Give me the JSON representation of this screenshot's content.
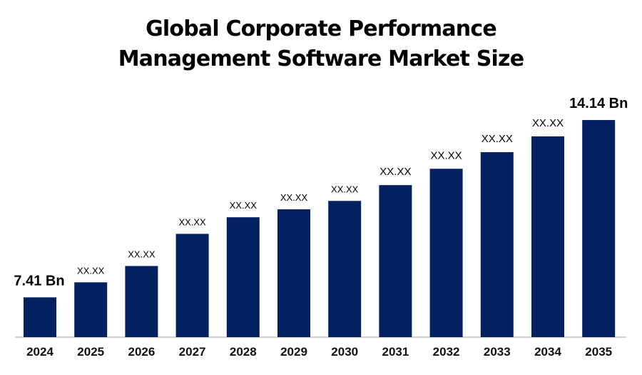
{
  "chart_data": {
    "type": "bar",
    "title_lines": [
      "Global Corporate Performance",
      "Management Software Market Size"
    ],
    "categories": [
      "2024",
      "2025",
      "2026",
      "2027",
      "2028",
      "2029",
      "2030",
      "2031",
      "2032",
      "2033",
      "2034",
      "2035"
    ],
    "values": [
      7.41,
      7.98,
      8.6,
      9.82,
      10.45,
      10.75,
      11.07,
      11.67,
      12.29,
      12.92,
      13.52,
      14.14
    ],
    "data_labels": [
      "7.41 Bn",
      "XX.XX",
      "XX.XX",
      "XX.XX",
      "XX.XX",
      "XX.XX",
      "XX.XX",
      "XX.XX",
      "XX.XX",
      "XX.XX",
      "XX.XX",
      "14.14 Bn"
    ],
    "xlabel": "",
    "ylabel": "",
    "ylim": [
      5.9,
      14.9
    ],
    "grid": false,
    "legend": "none",
    "bar_color": "#032060",
    "axis_color": "#d0d0d0"
  }
}
